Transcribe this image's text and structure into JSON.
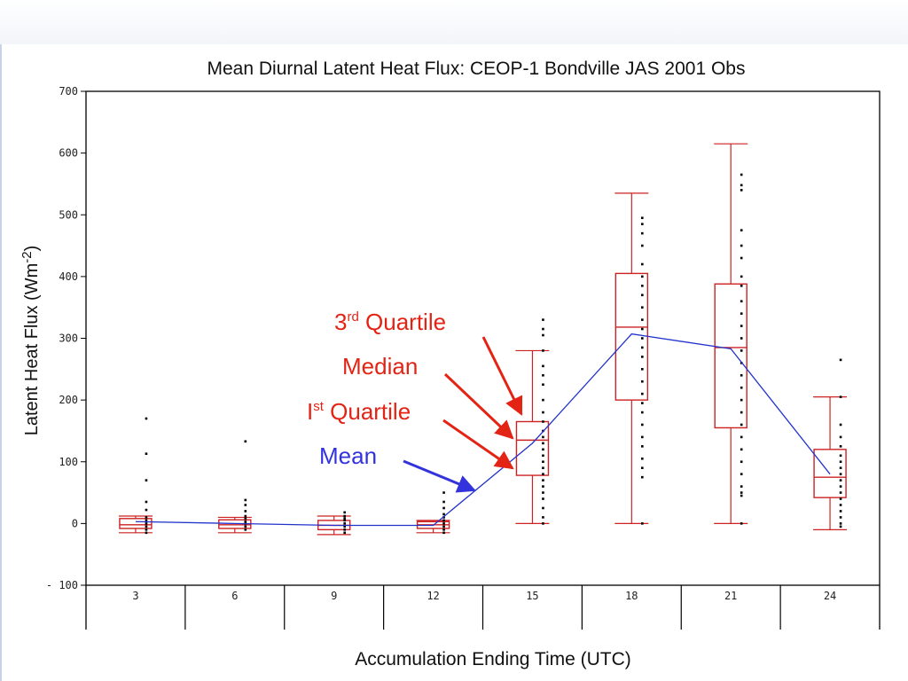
{
  "chart_data": {
    "type": "box",
    "title": "Mean Diurnal Latent Heat Flux: CEOP-1 Bondville JAS 2001 Obs",
    "xlabel": "Accumulation Ending Time (UTC)",
    "ylabel": "Latent Heat Flux (Wm-2)",
    "ylabel_parts": {
      "main": "Latent Heat Flux (Wm",
      "sup": "-2",
      "end": ")"
    },
    "ylim": [
      -100,
      700
    ],
    "yticks": [
      -100,
      0,
      100,
      200,
      300,
      400,
      500,
      600,
      700
    ],
    "ytick_labels": [
      "- 100",
      "0",
      "100",
      "200",
      "300",
      "400",
      "500",
      "600",
      "700"
    ],
    "categories": [
      "3",
      "6",
      "9",
      "12",
      "15",
      "18",
      "21",
      "24"
    ],
    "boxes": [
      {
        "min": -15,
        "q1": -8,
        "median": -2,
        "q3": 8,
        "max": 12
      },
      {
        "min": -15,
        "q1": -8,
        "median": -2,
        "q3": 6,
        "max": 10
      },
      {
        "min": -18,
        "q1": -10,
        "median": -3,
        "q3": 5,
        "max": 12
      },
      {
        "min": -15,
        "q1": -8,
        "median": -2,
        "q3": 3,
        "max": 5
      },
      {
        "min": 0,
        "q1": 78,
        "median": 135,
        "q3": 165,
        "max": 280
      },
      {
        "min": 0,
        "q1": 200,
        "median": 318,
        "q3": 405,
        "max": 535
      },
      {
        "min": 0,
        "q1": 155,
        "median": 285,
        "q3": 388,
        "max": 615
      },
      {
        "min": -10,
        "q1": 42,
        "median": 75,
        "q3": 120,
        "max": 205
      }
    ],
    "mean": [
      3,
      0,
      -3,
      -3,
      130,
      307,
      283,
      80
    ],
    "points": [
      [
        170,
        113,
        70,
        35,
        22,
        10,
        5,
        0,
        -5,
        -10,
        -15
      ],
      [
        133,
        38,
        30,
        20,
        12,
        8,
        3,
        0,
        -5,
        -10
      ],
      [
        18,
        12,
        8,
        5,
        0,
        -5,
        -10,
        -15
      ],
      [
        50,
        35,
        25,
        15,
        10,
        5,
        0,
        -5,
        -10,
        -15
      ],
      [
        330,
        315,
        305,
        280,
        255,
        240,
        225,
        200,
        180,
        165,
        150,
        140,
        130,
        120,
        110,
        100,
        90,
        80,
        70,
        60,
        50,
        40,
        25,
        10,
        0
      ],
      [
        495,
        485,
        470,
        450,
        420,
        400,
        385,
        370,
        350,
        330,
        315,
        300,
        285,
        270,
        250,
        230,
        210,
        195,
        180,
        160,
        140,
        125,
        105,
        90,
        75,
        0
      ],
      [
        565,
        548,
        540,
        475,
        450,
        430,
        400,
        385,
        360,
        340,
        320,
        300,
        280,
        260,
        240,
        220,
        200,
        180,
        160,
        140,
        120,
        100,
        80,
        60,
        50,
        45,
        0
      ],
      [
        265,
        205,
        160,
        140,
        125,
        110,
        100,
        90,
        80,
        70,
        60,
        50,
        40,
        30,
        20,
        10,
        0,
        -5
      ]
    ],
    "box_color": "#cc2222",
    "mean_color": "#2233cc",
    "grid": false
  },
  "annotations": {
    "q3": {
      "pre": "3",
      "sup": "rd",
      "post": " Quartile",
      "color": "#e32415"
    },
    "median": {
      "text": "Median",
      "color": "#e32415"
    },
    "q1": {
      "pre": "I",
      "sup": "st",
      "post": " Quartile",
      "color": "#e32415"
    },
    "mean": {
      "text": "Mean",
      "color": "#3333dd"
    }
  }
}
